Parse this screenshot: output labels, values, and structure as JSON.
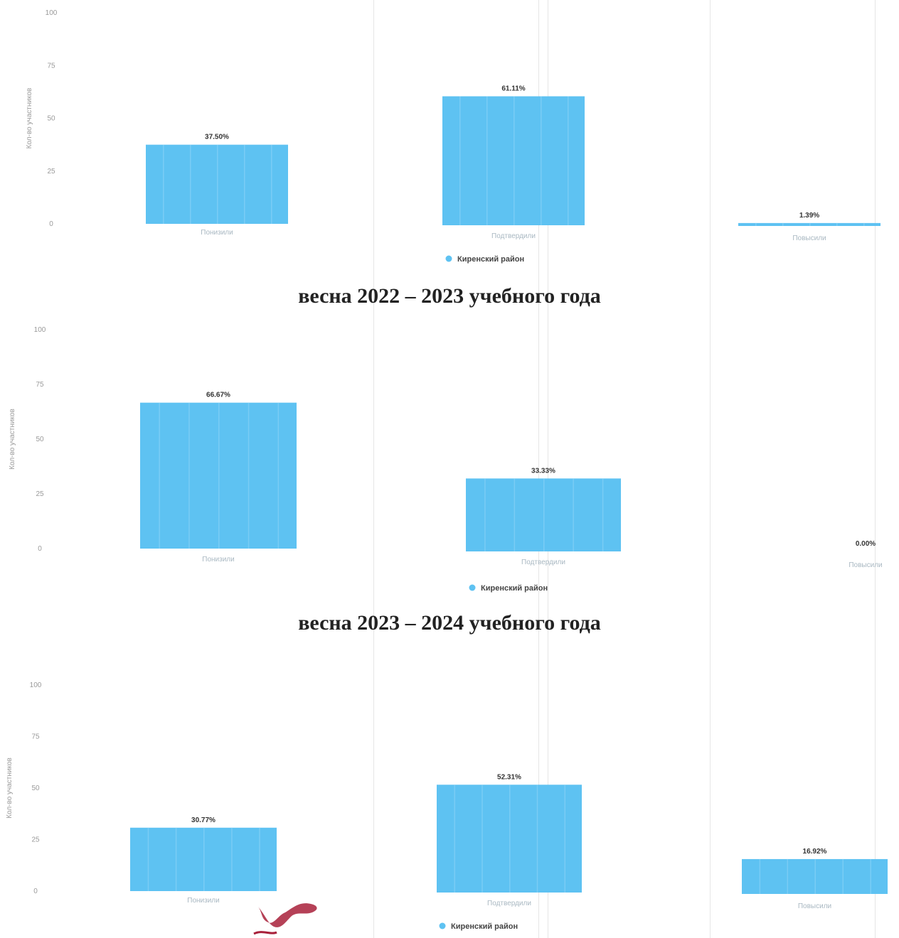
{
  "titles": [
    "весна 2022 – 2023 учебного года",
    "весна 2023 – 2024 учебного года"
  ],
  "colors": {
    "bar": "#5ec2f2",
    "legend_dot": "#5ec2f2"
  },
  "chart_data": [
    {
      "type": "bar",
      "title": "",
      "ylabel": "Кол-во участников",
      "ylim": [
        0,
        100
      ],
      "yticks": [
        "0",
        "25",
        "50",
        "75",
        "100"
      ],
      "categories": [
        "Понизили",
        "Подтвердили",
        "Повысили"
      ],
      "series": [
        {
          "name": "Киренский район",
          "values": [
            37.5,
            61.11,
            1.39
          ],
          "labels": [
            "37.50%",
            "61.11%",
            "1.39%"
          ]
        }
      ],
      "legend": "bottom-center"
    },
    {
      "type": "bar",
      "title": "весна 2022 – 2023 учебного года",
      "ylabel": "Кол-во участников",
      "ylim": [
        0,
        100
      ],
      "yticks": [
        "0",
        "25",
        "50",
        "75",
        "100"
      ],
      "categories": [
        "Понизили",
        "Подтвердили",
        "Повысили"
      ],
      "series": [
        {
          "name": "Киренский район",
          "values": [
            66.67,
            33.33,
            0.0
          ],
          "labels": [
            "66.67%",
            "33.33%",
            "0.00%"
          ]
        }
      ],
      "legend": "bottom-center"
    },
    {
      "type": "bar",
      "title": "весна 2023 – 2024 учебного года",
      "ylabel": "Кол-во участников",
      "ylim": [
        0,
        100
      ],
      "yticks": [
        "0",
        "25",
        "50",
        "75",
        "100"
      ],
      "categories": [
        "Понизили",
        "Подтвердили",
        "Повысили"
      ],
      "series": [
        {
          "name": "Киренский район",
          "values": [
            30.77,
            52.31,
            16.92
          ],
          "labels": [
            "30.77%",
            "52.31%",
            "16.92%"
          ]
        }
      ],
      "legend": "bottom-center"
    }
  ]
}
